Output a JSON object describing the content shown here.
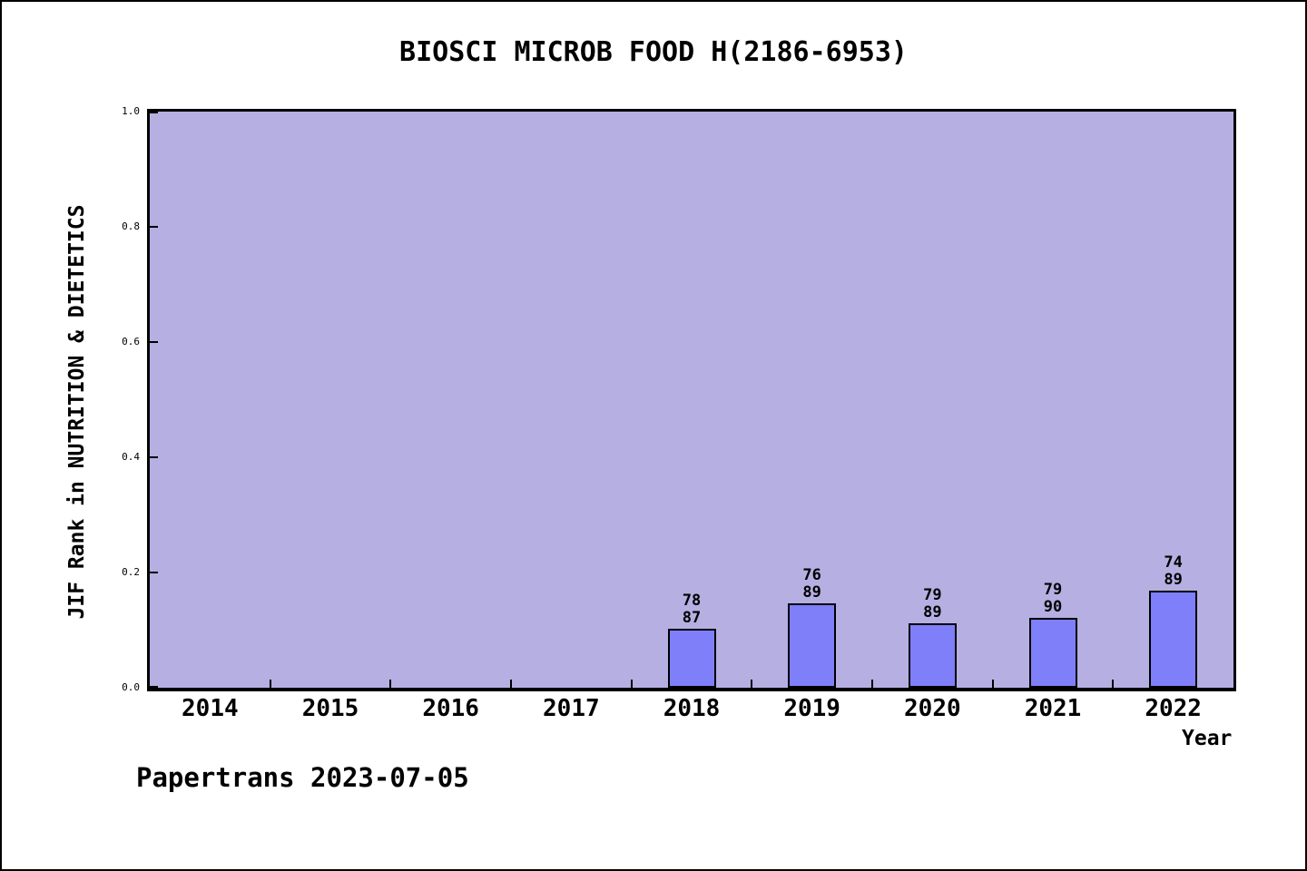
{
  "chart_data": {
    "type": "bar",
    "title": "BIOSCI MICROB FOOD H(2186-6953)",
    "xlabel": "Year",
    "ylabel": "JIF Rank in NUTRITION & DIETETICS",
    "footer": "Papertrans 2023-07-05",
    "categories": [
      "2014",
      "2015",
      "2016",
      "2017",
      "2018",
      "2019",
      "2020",
      "2021",
      "2022"
    ],
    "values": [
      null,
      null,
      null,
      null,
      0.103,
      0.146,
      0.112,
      0.122,
      0.169
    ],
    "ylim": [
      0,
      1
    ],
    "yticks": [
      "0.0",
      "0.2",
      "0.4",
      "0.6",
      "0.8",
      "1.0"
    ],
    "grid": false,
    "legend": null,
    "plot_bg_color": "#b5afe2",
    "bar_color": "#7f7ffa",
    "bars": [
      {
        "category": "2018",
        "rank": "78",
        "total": "87",
        "value": 0.103
      },
      {
        "category": "2019",
        "rank": "76",
        "total": "89",
        "value": 0.146
      },
      {
        "category": "2020",
        "rank": "79",
        "total": "89",
        "value": 0.112
      },
      {
        "category": "2021",
        "rank": "79",
        "total": "90",
        "value": 0.122
      },
      {
        "category": "2022",
        "rank": "74",
        "total": "89",
        "value": 0.169
      }
    ]
  }
}
